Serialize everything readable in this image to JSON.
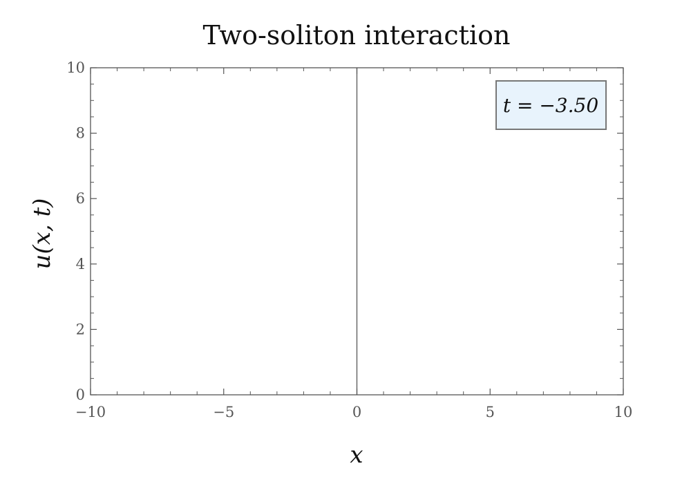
{
  "chart_data": {
    "type": "line",
    "title": "Two-soliton interaction",
    "xlabel": "x",
    "ylabel": "u(x, t)",
    "xlim": [
      -10,
      10
    ],
    "ylim": [
      0,
      10
    ],
    "xticks": [
      -10,
      -5,
      0,
      5,
      10
    ],
    "yticks": [
      0,
      2,
      4,
      6,
      8,
      10
    ],
    "xtick_labels": [
      "−10",
      "−5",
      "0",
      "5",
      "10"
    ],
    "ytick_labels": [
      "0",
      "2",
      "4",
      "6",
      "8",
      "10"
    ],
    "x_minor_step": 1,
    "y_minor_step": 0.5,
    "reference_lines": [
      {
        "axis": "x",
        "value": 0
      }
    ],
    "annotation": {
      "text": "t = −3.50",
      "position": "top-right"
    },
    "grid": false,
    "series": [],
    "colors": {
      "axis": "#555555",
      "annotation_fill": "#e8f3fc",
      "annotation_border": "#777777"
    }
  }
}
